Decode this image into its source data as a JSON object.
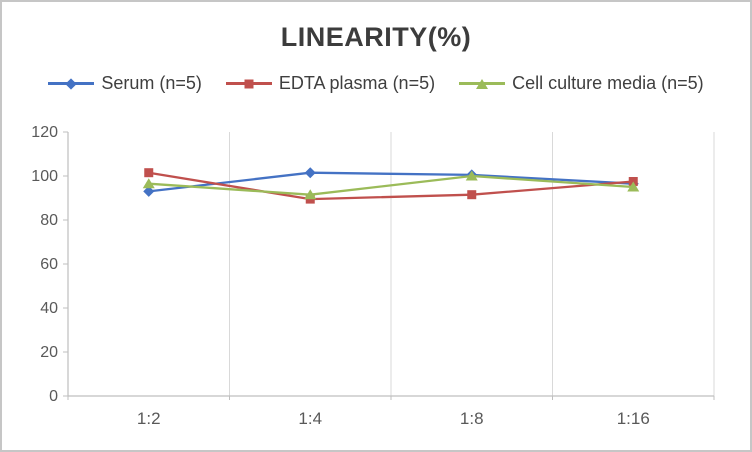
{
  "chart_data": {
    "type": "line",
    "title": "LINEARITY(%)",
    "categories": [
      "1:2",
      "1:4",
      "1:8",
      "1:16"
    ],
    "series": [
      {
        "name": "Serum (n=5)",
        "color": "#4472C4",
        "marker": "diamond",
        "values": [
          93,
          101.5,
          100.5,
          96.5
        ]
      },
      {
        "name": "EDTA plasma (n=5)",
        "color": "#C0504D",
        "marker": "square",
        "values": [
          101.5,
          89.5,
          91.5,
          97.5
        ]
      },
      {
        "name": "Cell culture media (n=5)",
        "color": "#9BBB59",
        "marker": "triangle",
        "values": [
          96.5,
          91.5,
          100,
          95
        ]
      }
    ],
    "ylim": [
      0,
      120
    ],
    "yticks": [
      0,
      20,
      40,
      60,
      80,
      100,
      120
    ],
    "grid": "vertical",
    "legend_position": "top",
    "axis_color": "#bfbfbf",
    "gridline_color": "#d9d9d9",
    "tick_label_color": "#595959"
  }
}
